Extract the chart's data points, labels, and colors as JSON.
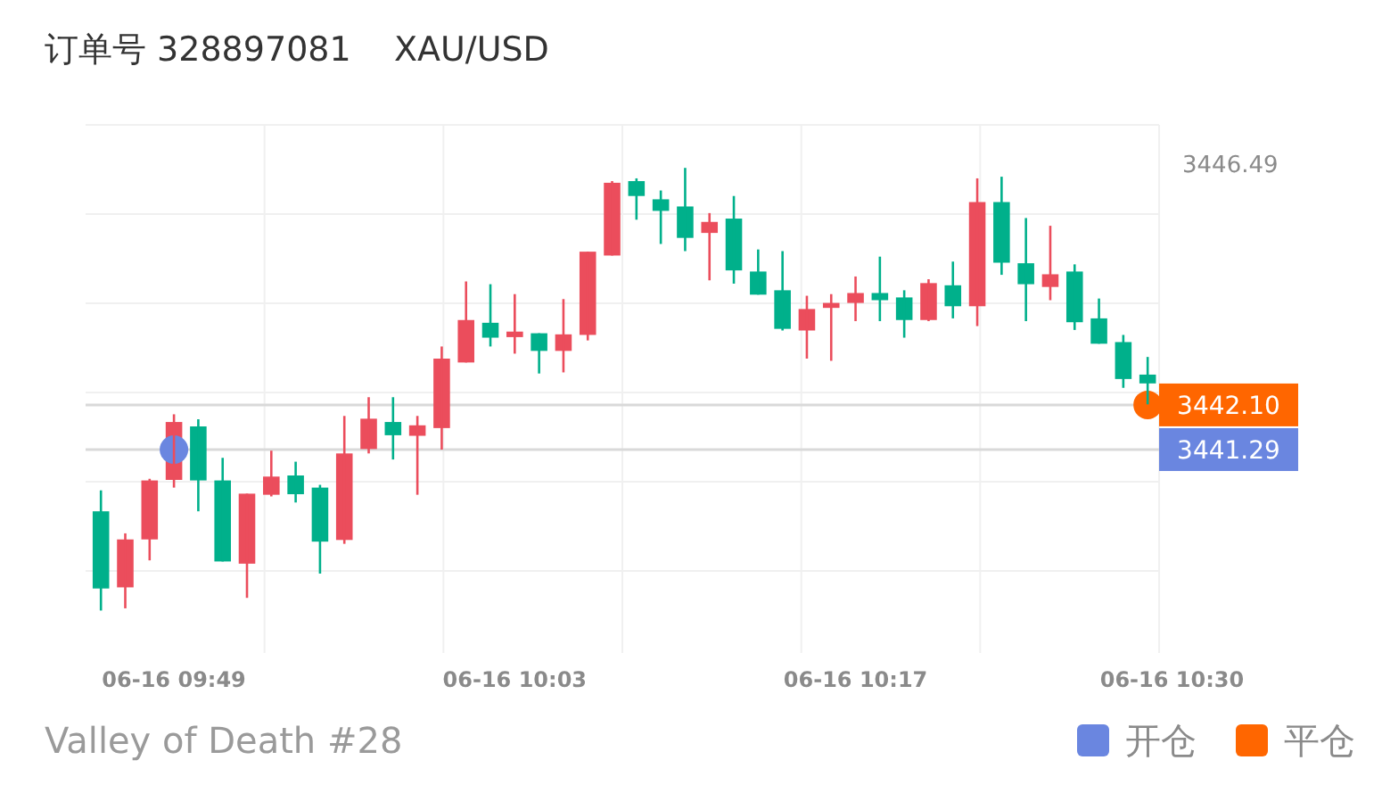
{
  "chart_data": {
    "type": "candlestick",
    "title": "订单号 328897081    XAU/USD",
    "categories": [
      null,
      null,
      null,
      "06-16 09:49",
      null,
      null,
      null,
      null,
      null,
      null,
      null,
      null,
      null,
      null,
      null,
      null,
      null,
      "06-16 10:03",
      null,
      null,
      null,
      null,
      null,
      null,
      null,
      null,
      null,
      null,
      null,
      null,
      null,
      "06-16 10:17",
      null,
      null,
      null,
      null,
      null,
      null,
      null,
      null,
      null,
      null,
      null,
      null,
      "06-16 10:30"
    ],
    "ohlc": [
      [
        3440.17,
        3440.55,
        3438.37,
        3438.77
      ],
      [
        3438.79,
        3439.77,
        3438.41,
        3439.66
      ],
      [
        3439.66,
        3440.76,
        3439.28,
        3440.73
      ],
      [
        3440.74,
        3441.93,
        3440.6,
        3441.79
      ],
      [
        3441.71,
        3441.84,
        3440.17,
        3440.73
      ],
      [
        3440.73,
        3441.14,
        3439.26,
        3439.26
      ],
      [
        3439.22,
        3440.49,
        3438.6,
        3440.49
      ],
      [
        3440.47,
        3441.27,
        3440.44,
        3440.8
      ],
      [
        3440.82,
        3441.07,
        3440.33,
        3440.48
      ],
      [
        3440.6,
        3440.65,
        3439.04,
        3439.62
      ],
      [
        3439.65,
        3441.9,
        3439.58,
        3441.22
      ],
      [
        3441.3,
        3442.24,
        3441.22,
        3441.85
      ],
      [
        3441.79,
        3442.24,
        3441.11,
        3441.55
      ],
      [
        3441.54,
        3441.9,
        3440.47,
        3441.73
      ],
      [
        3441.68,
        3443.16,
        3441.29,
        3442.94
      ],
      [
        3442.87,
        3444.34,
        3442.87,
        3443.64
      ],
      [
        3443.59,
        3444.29,
        3443.16,
        3443.32
      ],
      [
        3443.33,
        3444.11,
        3443.03,
        3443.43
      ],
      [
        3443.4,
        3443.4,
        3442.67,
        3443.08
      ],
      [
        3443.08,
        3444.02,
        3442.69,
        3443.38
      ],
      [
        3443.37,
        3444.88,
        3443.27,
        3444.88
      ],
      [
        3444.81,
        3446.16,
        3444.81,
        3446.13
      ],
      [
        3446.16,
        3446.21,
        3445.46,
        3445.89
      ],
      [
        3445.83,
        3445.99,
        3445.02,
        3445.62
      ],
      [
        3445.7,
        3446.4,
        3444.89,
        3445.13
      ],
      [
        3445.22,
        3445.58,
        3444.36,
        3445.42
      ],
      [
        3445.48,
        3445.89,
        3444.3,
        3444.54
      ],
      [
        3444.52,
        3444.92,
        3444.1,
        3444.1
      ],
      [
        3444.18,
        3444.89,
        3443.45,
        3443.48
      ],
      [
        3443.45,
        3444.08,
        3442.94,
        3443.84
      ],
      [
        3443.86,
        3444.11,
        3442.9,
        3443.95
      ],
      [
        3443.95,
        3444.43,
        3443.62,
        3444.13
      ],
      [
        3444.13,
        3444.79,
        3443.62,
        3444.0
      ],
      [
        3444.05,
        3444.18,
        3443.32,
        3443.64
      ],
      [
        3443.64,
        3444.38,
        3443.62,
        3444.31
      ],
      [
        3444.27,
        3444.7,
        3443.67,
        3443.89
      ],
      [
        3443.89,
        3446.21,
        3443.53,
        3445.78
      ],
      [
        3445.78,
        3446.24,
        3444.46,
        3444.68
      ],
      [
        3444.67,
        3445.49,
        3443.62,
        3444.29
      ],
      [
        3444.24,
        3445.35,
        3444.0,
        3444.47
      ],
      [
        3444.52,
        3444.65,
        3443.46,
        3443.6
      ],
      [
        3443.67,
        3444.03,
        3443.21,
        3443.21
      ],
      [
        3443.24,
        3443.37,
        3442.41,
        3442.57
      ],
      [
        3442.65,
        3442.97,
        3442.11,
        3442.49
      ],
      null
    ],
    "colors": [
      "#00b08b",
      "#eb4d5c",
      "#eb4d5c",
      "#eb4d5c",
      "#00b08b",
      "#00b08b",
      "#eb4d5c",
      "#eb4d5c",
      "#00b08b",
      "#00b08b",
      "#eb4d5c",
      "#eb4d5c",
      "#00b08b",
      "#eb4d5c",
      "#eb4d5c",
      "#eb4d5c",
      "#00b08b",
      "#eb4d5c",
      "#00b08b",
      "#eb4d5c",
      "#eb4d5c",
      "#eb4d5c",
      "#00b08b",
      "#00b08b",
      "#00b08b",
      "#eb4d5c",
      "#00b08b",
      "#00b08b",
      "#00b08b",
      "#eb4d5c",
      "#eb4d5c",
      "#eb4d5c",
      "#00b08b",
      "#00b08b",
      "#eb4d5c",
      "#00b08b",
      "#eb4d5c",
      "#00b08b",
      "#00b08b",
      "#eb4d5c",
      "#00b08b",
      "#00b08b",
      "#00b08b",
      "#00b08b",
      null
    ],
    "series": [
      {
        "name": "开仓",
        "type": "scatter",
        "color": "#6a86e0",
        "values": [
          null,
          null,
          null,
          3441.29,
          null,
          null,
          null,
          null,
          null,
          null,
          null,
          null,
          null,
          null,
          null,
          null,
          null,
          null,
          null,
          null,
          null,
          null,
          null,
          null,
          null,
          null,
          null,
          null,
          null,
          null,
          null,
          null,
          null,
          null,
          null,
          null,
          null,
          null,
          null,
          null,
          null,
          null,
          null,
          null,
          null
        ]
      },
      {
        "name": "平仓",
        "type": "scatter",
        "color": "#ff6600",
        "values": [
          null,
          null,
          null,
          null,
          null,
          null,
          null,
          null,
          null,
          null,
          null,
          null,
          null,
          null,
          null,
          null,
          null,
          null,
          null,
          null,
          null,
          null,
          null,
          null,
          null,
          null,
          null,
          null,
          null,
          null,
          null,
          null,
          null,
          null,
          null,
          null,
          null,
          null,
          null,
          null,
          null,
          null,
          null,
          3442.1,
          null
        ]
      }
    ],
    "marker": "circle",
    "ylim": [
      3437.6,
      3447.18
    ],
    "yticks": [
      {
        "value": 3441.29,
        "label": "3441.29"
      },
      {
        "value": 3442.1,
        "label": "3442.10"
      },
      3446.49
    ],
    "ref_lines": [
      {
        "axis": "y",
        "value": 3442.1,
        "color": "#d9d9d9"
      },
      {
        "axis": "y",
        "value": 3441.29,
        "color": "#d9d9d9"
      }
    ],
    "grid": true,
    "legend": "bottom right",
    "annotations": [
      "Valley of Death #28"
    ]
  }
}
